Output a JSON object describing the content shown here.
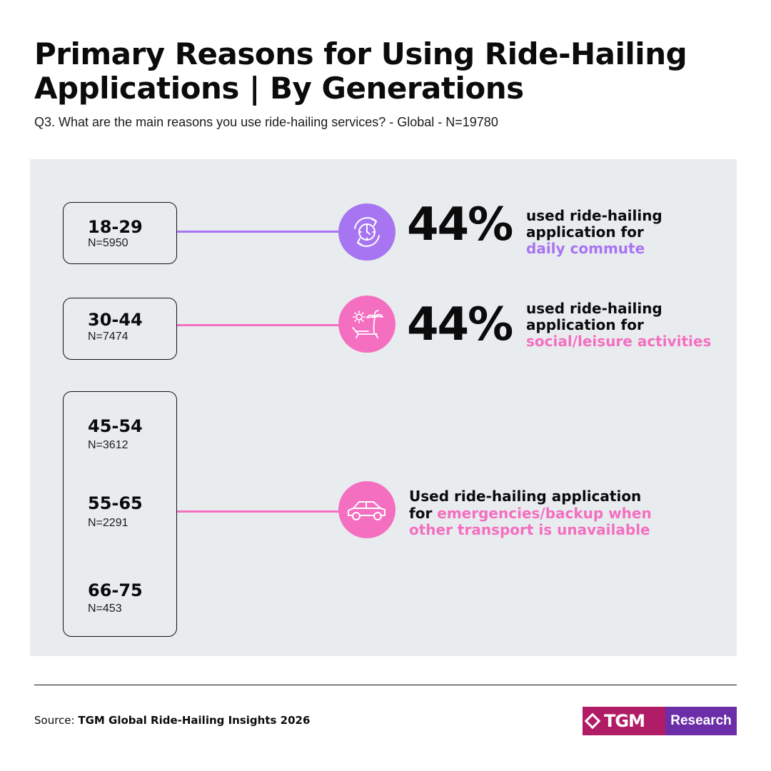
{
  "header": {
    "title": "Primary Reasons for Using Ride-Hailing Applications | By Generations",
    "subtitle": "Q3. What are the main reasons you use ride-hailing services? - Global - N=19780"
  },
  "colors": {
    "purple": "#a775f2",
    "pink": "#f46fc0",
    "panel": "#e9ecef"
  },
  "groups": [
    {
      "age": "18-29",
      "n": "N=5950"
    },
    {
      "age": "30-44",
      "n": "N=7474"
    },
    {
      "age": "45-54",
      "n": "N=3612"
    },
    {
      "age": "55-65",
      "n": "N=2291"
    },
    {
      "age": "66-75",
      "n": "N=453"
    }
  ],
  "findings": [
    {
      "icon": "clock-cycle-icon",
      "pct": "44%",
      "line1": "used ride-hailing",
      "line2": "application for",
      "highlight": "daily commute"
    },
    {
      "icon": "beach-lounger-icon",
      "pct": "44%",
      "line1": "used ride-hailing",
      "line2": "application for",
      "highlight": "social/leisure activities"
    },
    {
      "icon": "car-icon",
      "line1": "Used ride-hailing application",
      "line2_prefix": "for ",
      "highlight1": "emergencies/backup when",
      "highlight2": "other transport is unavailable"
    }
  ],
  "footer": {
    "source_label": "Source:",
    "source_value": "TGM Global Ride-Hailing Insights 2026",
    "logo_left": "TGM",
    "logo_right": "Research"
  }
}
